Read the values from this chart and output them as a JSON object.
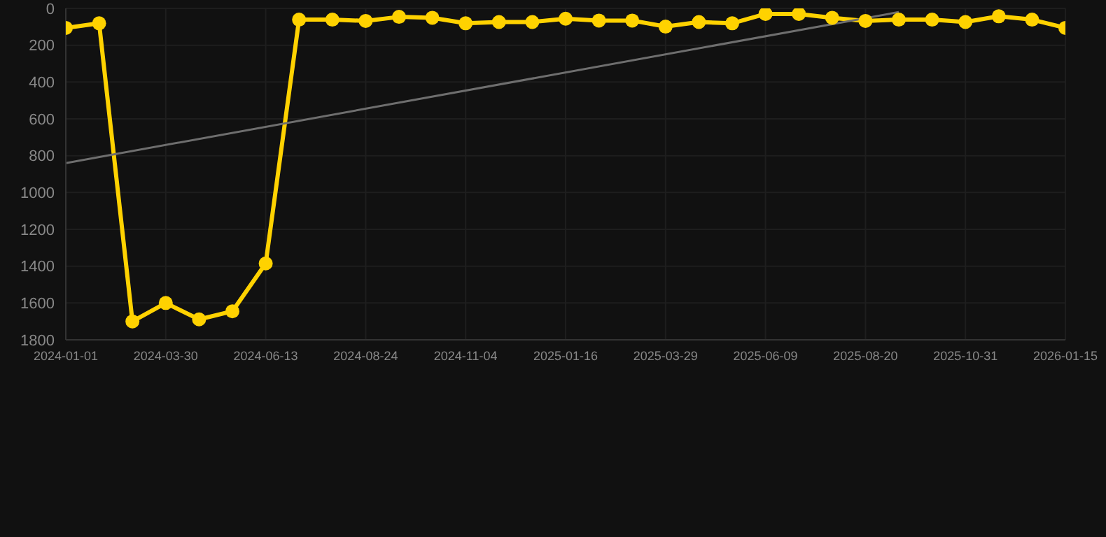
{
  "chart_data": {
    "type": "line",
    "categories": [
      "2024-01-01",
      null,
      null,
      "2024-03-30",
      null,
      null,
      "2024-06-13",
      null,
      null,
      "2024-08-24",
      null,
      null,
      "2024-11-04",
      null,
      null,
      "2025-01-16",
      null,
      null,
      "2025-03-29",
      null,
      null,
      "2025-06-09",
      null,
      null,
      "2025-08-20",
      null,
      null,
      "2025-10-31",
      null,
      null,
      "2026-01-15"
    ],
    "series": [
      {
        "color": "#ffd200",
        "marker": "circle",
        "values": [
          106,
          81,
          1700,
          1600,
          1689,
          1645,
          1385,
          61,
          61,
          68,
          46,
          51,
          81,
          74,
          74,
          56,
          66,
          66,
          99,
          74,
          81,
          30,
          30,
          51,
          68,
          61,
          61,
          74,
          43,
          61,
          106
        ]
      },
      {
        "type": "line",
        "color": "#6e6e6e",
        "marker": "none",
        "values": [
          840,
          null,
          null,
          null,
          null,
          null,
          null,
          null,
          null,
          null,
          null,
          null,
          null,
          null,
          null,
          null,
          null,
          null,
          null,
          null,
          null,
          null,
          null,
          null,
          null,
          20,
          null,
          null,
          null,
          null,
          null
        ]
      }
    ],
    "ylim": [
      1800,
      0
    ],
    "yticks": [
      0,
      200,
      400,
      600,
      800,
      1000,
      1200,
      1400,
      1600,
      1800
    ],
    "grid": true,
    "legend": false
  }
}
